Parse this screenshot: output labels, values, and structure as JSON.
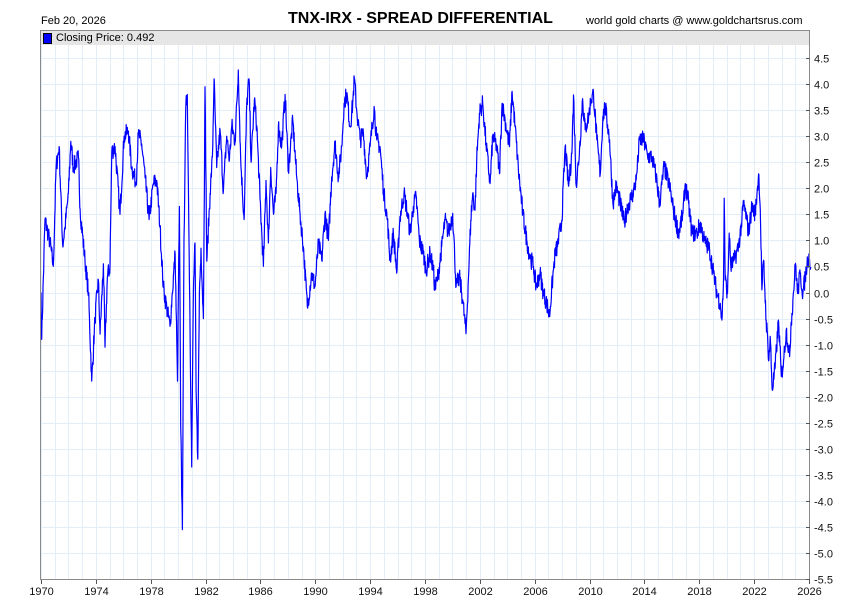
{
  "header": {
    "date": "Feb 20, 2026",
    "title": "TNX-IRX  -  SPREAD DIFFERENTIAL",
    "credit": "world gold charts @ www.goldchartsrus.com"
  },
  "legend": {
    "label": "Closing Price: 0.492"
  },
  "colors": {
    "line": "#0000ff",
    "grid": "#e3eef8",
    "frame": "#8a8a8a",
    "legend_bg": "#e6e6e6"
  },
  "chart_data": {
    "type": "line",
    "title": "TNX-IRX  -  SPREAD DIFFERENTIAL",
    "xlabel": "",
    "ylabel": "",
    "xlim": [
      1970,
      2026.13
    ],
    "ylim": [
      -5.52,
      5.04
    ],
    "x_ticks": [
      "1970",
      "1974",
      "1978",
      "1982",
      "1986",
      "1990",
      "1994",
      "1998",
      "2002",
      "2006",
      "2010",
      "2014",
      "2018",
      "2022",
      "2026"
    ],
    "y_ticks": [
      "4.5",
      "4.0",
      "3.5",
      "3.0",
      "2.5",
      "2.0",
      "1.5",
      "1.0",
      "0.5",
      "0.0",
      "-0.5",
      "-1.0",
      "-1.5",
      "-2.0",
      "-2.5",
      "-3.0",
      "-3.5",
      "-4.0",
      "-4.5",
      "-5.0",
      "-5.5"
    ],
    "grid": true,
    "legend_position": "top-left",
    "series": [
      {
        "name": "Closing Price",
        "last": 0.492,
        "points": [
          [
            1970.0,
            0.0
          ],
          [
            1970.05,
            -0.9
          ],
          [
            1970.29,
            1.4
          ],
          [
            1970.66,
            0.95
          ],
          [
            1970.9,
            0.5
          ],
          [
            1971.1,
            2.4
          ],
          [
            1971.32,
            2.8
          ],
          [
            1971.58,
            0.9
          ],
          [
            1971.75,
            1.25
          ],
          [
            1972.0,
            1.9
          ],
          [
            1972.17,
            2.9
          ],
          [
            1972.36,
            2.4
          ],
          [
            1972.73,
            2.6
          ],
          [
            1972.85,
            1.6
          ],
          [
            1973.21,
            0.6
          ],
          [
            1973.46,
            0.0
          ],
          [
            1973.7,
            -1.7
          ],
          [
            1973.94,
            -0.5
          ],
          [
            1974.18,
            0.25
          ],
          [
            1974.31,
            -0.8
          ],
          [
            1974.55,
            0.55
          ],
          [
            1974.67,
            -1.05
          ],
          [
            1974.84,
            0.3
          ],
          [
            1975.03,
            0.5
          ],
          [
            1975.16,
            2.7
          ],
          [
            1975.4,
            2.8
          ],
          [
            1975.76,
            1.5
          ],
          [
            1976.06,
            3.0
          ],
          [
            1976.37,
            3.1
          ],
          [
            1976.62,
            2.4
          ],
          [
            1976.93,
            2.1
          ],
          [
            1977.1,
            3.05
          ],
          [
            1977.34,
            2.85
          ],
          [
            1977.59,
            2.2
          ],
          [
            1977.88,
            1.4
          ],
          [
            1978.2,
            2.1
          ],
          [
            1978.44,
            2.15
          ],
          [
            1978.68,
            1.25
          ],
          [
            1978.92,
            0.1
          ],
          [
            1979.17,
            -0.3
          ],
          [
            1979.41,
            -0.65
          ],
          [
            1979.58,
            0.0
          ],
          [
            1979.78,
            0.75
          ],
          [
            1979.95,
            -1.7
          ],
          [
            1980.09,
            1.65
          ],
          [
            1980.19,
            -2.6
          ],
          [
            1980.31,
            -4.55
          ],
          [
            1980.43,
            1.05
          ],
          [
            1980.55,
            3.5
          ],
          [
            1980.67,
            3.8
          ],
          [
            1980.8,
            0.85
          ],
          [
            1980.99,
            -3.35
          ],
          [
            1981.11,
            0.0
          ],
          [
            1981.23,
            0.95
          ],
          [
            1981.31,
            -1.9
          ],
          [
            1981.43,
            -3.2
          ],
          [
            1981.55,
            0.0
          ],
          [
            1981.67,
            0.85
          ],
          [
            1981.84,
            -0.5
          ],
          [
            1981.96,
            3.95
          ],
          [
            1982.09,
            0.6
          ],
          [
            1982.33,
            1.9
          ],
          [
            1982.5,
            2.6
          ],
          [
            1982.62,
            4.1
          ],
          [
            1982.81,
            2.4
          ],
          [
            1983.06,
            3.1
          ],
          [
            1983.3,
            1.95
          ],
          [
            1983.54,
            3.0
          ],
          [
            1983.74,
            2.55
          ],
          [
            1983.91,
            3.2
          ],
          [
            1984.15,
            2.9
          ],
          [
            1984.39,
            4.27
          ],
          [
            1984.56,
            2.55
          ],
          [
            1984.81,
            1.4
          ],
          [
            1985.0,
            3.6
          ],
          [
            1985.17,
            4.1
          ],
          [
            1985.32,
            2.5
          ],
          [
            1985.56,
            3.7
          ],
          [
            1985.73,
            3.2
          ],
          [
            1985.97,
            1.8
          ],
          [
            1986.22,
            0.5
          ],
          [
            1986.41,
            2.15
          ],
          [
            1986.58,
            0.95
          ],
          [
            1986.75,
            2.4
          ],
          [
            1986.95,
            1.5
          ],
          [
            1987.14,
            1.9
          ],
          [
            1987.31,
            3.2
          ],
          [
            1987.55,
            2.8
          ],
          [
            1987.8,
            3.8
          ],
          [
            1988.04,
            2.35
          ],
          [
            1988.36,
            3.3
          ],
          [
            1988.65,
            2.2
          ],
          [
            1988.89,
            1.5
          ],
          [
            1989.13,
            0.88
          ],
          [
            1989.42,
            -0.27
          ],
          [
            1989.74,
            0.37
          ],
          [
            1989.98,
            0.11
          ],
          [
            1990.23,
            0.94
          ],
          [
            1990.47,
            0.62
          ],
          [
            1990.71,
            1.52
          ],
          [
            1990.96,
            1.0
          ],
          [
            1991.2,
            2.22
          ],
          [
            1991.44,
            2.86
          ],
          [
            1991.69,
            2.22
          ],
          [
            1991.93,
            2.8
          ],
          [
            1992.1,
            3.63
          ],
          [
            1992.29,
            3.82
          ],
          [
            1992.54,
            3.18
          ],
          [
            1992.73,
            3.63
          ],
          [
            1992.85,
            4.11
          ],
          [
            1993.02,
            3.5
          ],
          [
            1993.27,
            2.93
          ],
          [
            1993.51,
            3.06
          ],
          [
            1993.75,
            2.22
          ],
          [
            1994.0,
            2.8
          ],
          [
            1994.29,
            3.57
          ],
          [
            1994.48,
            2.93
          ],
          [
            1994.72,
            2.8
          ],
          [
            1994.97,
            1.97
          ],
          [
            1995.26,
            1.39
          ],
          [
            1995.45,
            0.62
          ],
          [
            1995.7,
            1.14
          ],
          [
            1995.94,
            0.37
          ],
          [
            1996.18,
            1.46
          ],
          [
            1996.47,
            1.9
          ],
          [
            1996.72,
            1.52
          ],
          [
            1996.91,
            1.14
          ],
          [
            1997.15,
            1.65
          ],
          [
            1997.35,
            1.84
          ],
          [
            1997.59,
            1.0
          ],
          [
            1997.88,
            0.75
          ],
          [
            1998.08,
            0.43
          ],
          [
            1998.37,
            0.75
          ],
          [
            1998.61,
            0.43
          ],
          [
            1998.73,
            0.05
          ],
          [
            1998.98,
            0.37
          ],
          [
            1999.22,
            0.88
          ],
          [
            1999.46,
            1.39
          ],
          [
            1999.71,
            1.14
          ],
          [
            2000.02,
            1.52
          ],
          [
            2000.27,
            0.11
          ],
          [
            2000.51,
            0.3
          ],
          [
            2000.75,
            -0.14
          ],
          [
            2000.99,
            -0.79
          ],
          [
            2001.17,
            0.3
          ],
          [
            2001.34,
            1.39
          ],
          [
            2001.48,
            1.9
          ],
          [
            2001.65,
            1.58
          ],
          [
            2001.77,
            2.54
          ],
          [
            2001.97,
            3.44
          ],
          [
            2002.21,
            3.63
          ],
          [
            2002.45,
            2.86
          ],
          [
            2002.75,
            2.09
          ],
          [
            2002.94,
            3.0
          ],
          [
            2003.23,
            2.8
          ],
          [
            2003.43,
            2.28
          ],
          [
            2003.62,
            3.63
          ],
          [
            2003.84,
            3.31
          ],
          [
            2004.16,
            2.8
          ],
          [
            2004.35,
            3.86
          ],
          [
            2004.57,
            3.18
          ],
          [
            2004.81,
            2.35
          ],
          [
            2005.13,
            1.52
          ],
          [
            2005.42,
            1.0
          ],
          [
            2005.66,
            0.69
          ],
          [
            2005.91,
            0.5
          ],
          [
            2006.1,
            0.11
          ],
          [
            2006.39,
            0.37
          ],
          [
            2006.64,
            -0.02
          ],
          [
            2006.88,
            -0.21
          ],
          [
            2007.07,
            -0.46
          ],
          [
            2007.32,
            0.3
          ],
          [
            2007.49,
            0.75
          ],
          [
            2007.66,
            0.88
          ],
          [
            2007.98,
            1.39
          ],
          [
            2008.22,
            2.8
          ],
          [
            2008.47,
            2.04
          ],
          [
            2008.71,
            2.67
          ],
          [
            2008.83,
            3.79
          ],
          [
            2009.03,
            2.04
          ],
          [
            2009.27,
            2.74
          ],
          [
            2009.49,
            3.72
          ],
          [
            2009.68,
            3.12
          ],
          [
            2009.93,
            3.38
          ],
          [
            2010.1,
            3.7
          ],
          [
            2010.29,
            3.82
          ],
          [
            2010.53,
            2.93
          ],
          [
            2010.78,
            2.28
          ],
          [
            2010.97,
            3.38
          ],
          [
            2011.14,
            3.57
          ],
          [
            2011.46,
            2.93
          ],
          [
            2011.7,
            1.71
          ],
          [
            2011.94,
            2.04
          ],
          [
            2012.24,
            1.71
          ],
          [
            2012.53,
            1.33
          ],
          [
            2012.77,
            1.65
          ],
          [
            2013.16,
            1.9
          ],
          [
            2013.4,
            2.16
          ],
          [
            2013.65,
            2.93
          ],
          [
            2013.94,
            2.93
          ],
          [
            2014.23,
            2.61
          ],
          [
            2014.54,
            2.61
          ],
          [
            2014.86,
            2.22
          ],
          [
            2015.1,
            1.71
          ],
          [
            2015.44,
            2.42
          ],
          [
            2015.83,
            2.04
          ],
          [
            2016.12,
            1.58
          ],
          [
            2016.49,
            1.14
          ],
          [
            2016.81,
            1.52
          ],
          [
            2016.98,
            2.09
          ],
          [
            2017.22,
            1.71
          ],
          [
            2017.46,
            1.14
          ],
          [
            2017.83,
            1.14
          ],
          [
            2018.07,
            1.33
          ],
          [
            2018.36,
            1.0
          ],
          [
            2018.75,
            0.82
          ],
          [
            2019.04,
            0.37
          ],
          [
            2019.29,
            -0.02
          ],
          [
            2019.53,
            -0.21
          ],
          [
            2019.65,
            -0.53
          ],
          [
            2019.77,
            0.24
          ],
          [
            2019.82,
            1.81
          ],
          [
            2019.89,
            0.24
          ],
          [
            2020.06,
            -0.02
          ],
          [
            2020.18,
            1.14
          ],
          [
            2020.3,
            0.5
          ],
          [
            2020.55,
            0.62
          ],
          [
            2020.86,
            0.88
          ],
          [
            2021.11,
            1.39
          ],
          [
            2021.23,
            1.71
          ],
          [
            2021.47,
            1.39
          ],
          [
            2021.59,
            1.14
          ],
          [
            2021.84,
            1.65
          ],
          [
            2022.08,
            1.52
          ],
          [
            2022.25,
            2.04
          ],
          [
            2022.35,
            2.26
          ],
          [
            2022.45,
            1.58
          ],
          [
            2022.57,
            0.05
          ],
          [
            2022.69,
            0.62
          ],
          [
            2022.88,
            -0.53
          ],
          [
            2023.08,
            -1.3
          ],
          [
            2023.17,
            -0.84
          ],
          [
            2023.32,
            -1.87
          ],
          [
            2023.54,
            -1.42
          ],
          [
            2023.78,
            -0.53
          ],
          [
            2023.98,
            -1.61
          ],
          [
            2024.15,
            -1.3
          ],
          [
            2024.34,
            -0.72
          ],
          [
            2024.59,
            -1.23
          ],
          [
            2024.68,
            -0.65
          ],
          [
            2024.83,
            -0.14
          ],
          [
            2025.02,
            0.56
          ],
          [
            2025.17,
            -0.02
          ],
          [
            2025.36,
            0.37
          ],
          [
            2025.56,
            -0.02
          ],
          [
            2025.73,
            0.3
          ],
          [
            2025.9,
            0.62
          ],
          [
            2026.02,
            0.69
          ],
          [
            2026.13,
            0.49
          ]
        ]
      }
    ]
  }
}
